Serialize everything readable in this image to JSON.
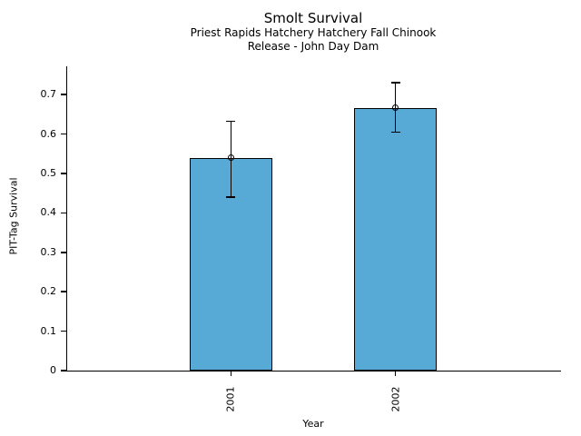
{
  "chart_data": {
    "type": "bar",
    "title": "Smolt Survival",
    "subtitle_lines": [
      "Priest Rapids Hatchery Hatchery Fall Chinook",
      "Release - John Day Dam"
    ],
    "xlabel": "Year",
    "ylabel": "PIT-Tag Survival",
    "categories": [
      "2001",
      "2002"
    ],
    "values": [
      0.54,
      0.667
    ],
    "error_low": [
      0.44,
      0.605
    ],
    "error_high": [
      0.633,
      0.731
    ],
    "yticks": [
      0,
      0.1,
      0.2,
      0.3,
      0.4,
      0.5,
      0.6,
      0.7
    ],
    "ytick_labels": [
      "0",
      "0.1",
      "0.2",
      "0.3",
      "0.4",
      "0.5",
      "0.6",
      "0.7"
    ],
    "ylim": [
      0,
      0.772
    ],
    "xlim": [
      -1,
      2
    ],
    "bar_width_units": 0.5,
    "xtick_rotation": 90,
    "grid": false,
    "colors": {
      "bar_fill": "#57AAD5",
      "bar_edge": "#000000",
      "errorbar": "#000000",
      "axis": "#000000"
    }
  }
}
